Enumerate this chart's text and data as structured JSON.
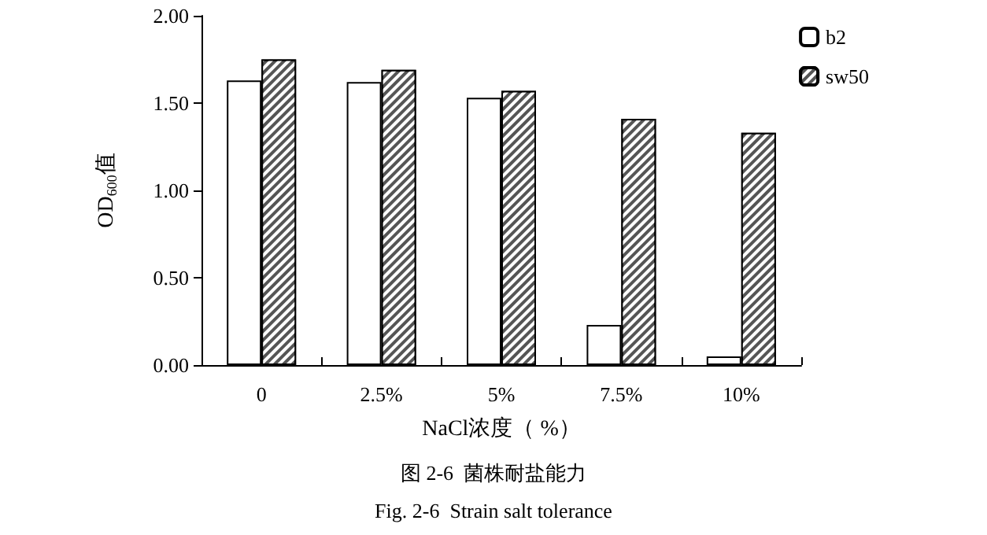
{
  "chart_data": {
    "type": "bar",
    "title": "图 2-6  菌株耐盐能力",
    "subtitle": "Fig. 2-6  Strain salt tolerance",
    "xlabel": "NaCl浓度（ %）",
    "ylabel": "OD$_{600}$值",
    "categories": [
      "0",
      "2.5%",
      "5%",
      "7.5%",
      "10%"
    ],
    "series": [
      {
        "name": "b2",
        "color": "#ffffff",
        "values": [
          1.63,
          1.62,
          1.53,
          0.23,
          0.05
        ]
      },
      {
        "name": "sw50",
        "color": "#555555",
        "values": [
          1.75,
          1.69,
          1.57,
          1.41,
          1.33
        ]
      }
    ],
    "ylim": [
      0,
      2
    ],
    "yticks": [
      {
        "value": 0,
        "label": "0.00"
      },
      {
        "value": 0.5,
        "label": "0.50"
      },
      {
        "value": 1,
        "label": "1.00"
      },
      {
        "value": 1.5,
        "label": "1.50"
      },
      {
        "value": 2,
        "label": "2.00"
      }
    ],
    "grid": false,
    "legend": "top right"
  }
}
